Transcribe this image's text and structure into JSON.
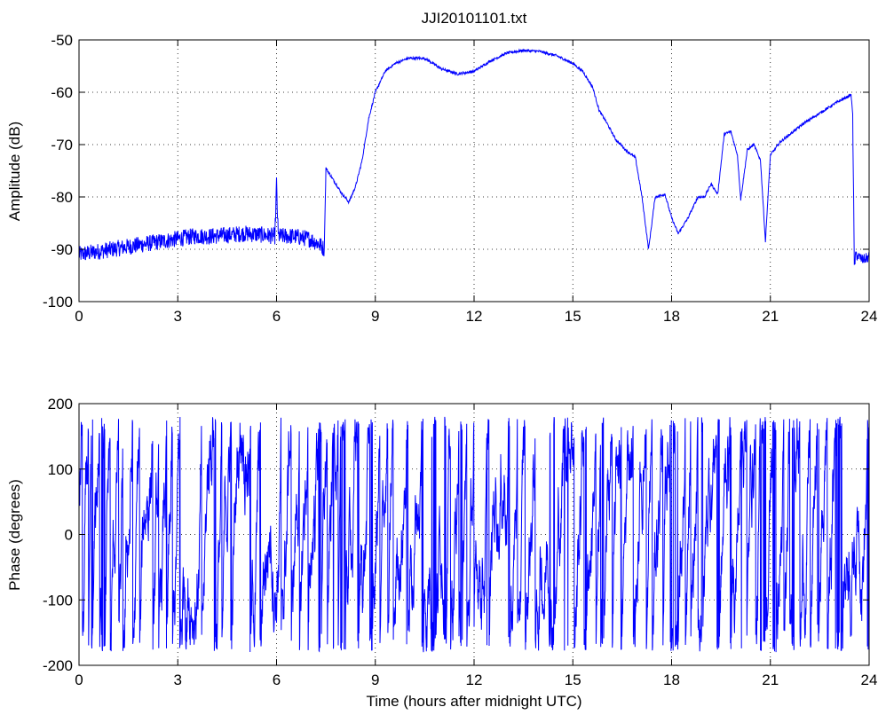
{
  "title": "JJI20101101.txt",
  "colors": {
    "series": "#0000ff",
    "axes": "#000000",
    "background": "#ffffff"
  },
  "chart_data": [
    {
      "type": "line",
      "title": "JJI20101101.txt",
      "xlabel": "",
      "ylabel": "Amplitude (dB)",
      "xlim": [
        0,
        24
      ],
      "ylim": [
        -100,
        -50
      ],
      "xticks": [
        0,
        3,
        6,
        9,
        12,
        15,
        18,
        21,
        24
      ],
      "yticks": [
        -100,
        -90,
        -80,
        -70,
        -60,
        -50
      ],
      "grid": true,
      "series": [
        {
          "color": "#0000ff",
          "x": [
            0,
            0.5,
            1,
            1.5,
            2,
            2.5,
            3,
            3.5,
            4,
            4.5,
            5,
            5.5,
            5.95,
            6.0,
            6.05,
            6.5,
            7,
            7.3,
            7.45,
            7.5,
            7.55,
            7.8,
            8.0,
            8.2,
            8.4,
            8.6,
            8.8,
            9.0,
            9.3,
            9.6,
            10,
            10.5,
            11,
            11.5,
            12,
            12.5,
            13,
            13.5,
            14,
            14.5,
            15,
            15.3,
            15.6,
            15.8,
            16,
            16.3,
            16.6,
            16.9,
            17.1,
            17.3,
            17.5,
            17.8,
            18.0,
            18.2,
            18.5,
            18.8,
            19.0,
            19.2,
            19.4,
            19.6,
            19.8,
            20.0,
            20.1,
            20.3,
            20.5,
            20.7,
            20.85,
            21.0,
            21.3,
            21.6,
            22,
            22.5,
            23,
            23.3,
            23.45,
            23.5,
            23.55,
            23.6,
            23.8,
            24
          ],
          "y": [
            -91,
            -90.5,
            -90,
            -89.5,
            -89,
            -88.5,
            -88,
            -87.5,
            -87.5,
            -87.3,
            -87,
            -87.2,
            -87.5,
            -77.5,
            -87.5,
            -87.5,
            -88,
            -89,
            -90,
            -74.5,
            -75,
            -77.5,
            -79.5,
            -81,
            -78,
            -73,
            -65,
            -60,
            -56,
            -54.5,
            -53.5,
            -53.5,
            -55.5,
            -56.5,
            -56,
            -54,
            -52.5,
            -52,
            -52.2,
            -53,
            -54.5,
            -56,
            -59,
            -63.5,
            -65.5,
            -69,
            -71,
            -72.5,
            -80,
            -90,
            -80,
            -79.5,
            -84,
            -87,
            -84,
            -80,
            -80,
            -77.5,
            -79.5,
            -68,
            -67.5,
            -72,
            -80.5,
            -71,
            -70,
            -73,
            -88.5,
            -72,
            -69.5,
            -68,
            -66,
            -64,
            -62,
            -61,
            -60.5,
            -64,
            -93,
            -91,
            -92,
            -91.5
          ]
        }
      ]
    },
    {
      "type": "line",
      "title": "",
      "xlabel": "Time (hours after midnight UTC)",
      "ylabel": "Phase (degrees)",
      "xlim": [
        0,
        24
      ],
      "ylim": [
        -200,
        200
      ],
      "xticks": [
        0,
        3,
        6,
        9,
        12,
        15,
        18,
        21,
        24
      ],
      "yticks": [
        -200,
        -100,
        0,
        100,
        200
      ],
      "grid": true,
      "series": [
        {
          "color": "#0000ff",
          "wrap_range": [
            -180,
            180
          ],
          "x": [
            0,
            1,
            2,
            3,
            4,
            5,
            6,
            7,
            8,
            9,
            10,
            11,
            12,
            13,
            14,
            15,
            16,
            17,
            18,
            19,
            20,
            21,
            22,
            23,
            24
          ],
          "y": [
            60,
            120,
            150,
            40,
            -30,
            100,
            -150,
            20,
            160,
            -120,
            60,
            -80,
            150,
            -20,
            110,
            -160,
            40,
            -90,
            130,
            10,
            -140,
            70,
            -30,
            160,
            90
          ]
        }
      ]
    }
  ]
}
